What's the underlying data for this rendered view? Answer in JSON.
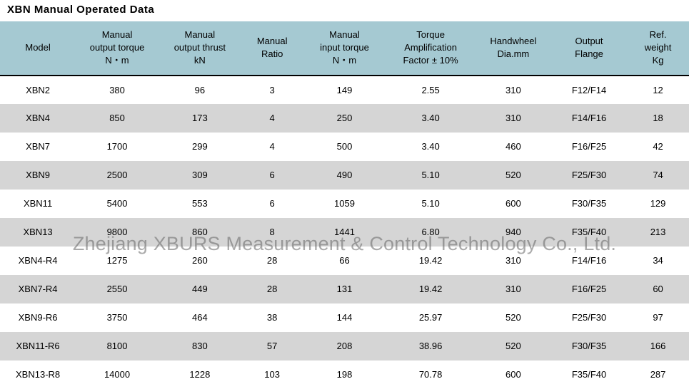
{
  "title": "XBN  Manual Operated Data",
  "watermark": "Zhejiang XBURS Measurement & Control Technology Co., Ltd.",
  "table": {
    "type": "table",
    "background_color": "#ffffff",
    "header_bg": "#a5c9d2",
    "row_alt_bg": "#d5d5d5",
    "header_border_bottom": "#000000",
    "font_family": "Arial",
    "header_fontsize": 13,
    "cell_fontsize": 13,
    "columns": [
      {
        "lines": [
          "Model"
        ],
        "width_pct": 11
      },
      {
        "lines": [
          "Manual",
          "output torque",
          "N・m"
        ],
        "width_pct": 12
      },
      {
        "lines": [
          "Manual",
          "output thrust",
          "kN"
        ],
        "width_pct": 12
      },
      {
        "lines": [
          "Manual",
          "Ratio"
        ],
        "width_pct": 9
      },
      {
        "lines": [
          "Manual",
          "input torque",
          "N・m"
        ],
        "width_pct": 12
      },
      {
        "lines": [
          "Torque",
          "Amplification",
          "Factor ± 10%"
        ],
        "width_pct": 13
      },
      {
        "lines": [
          "Handwheel",
          "Dia.mm"
        ],
        "width_pct": 11
      },
      {
        "lines": [
          "Output",
          "Flange"
        ],
        "width_pct": 11
      },
      {
        "lines": [
          "Ref.",
          "weight",
          "Kg"
        ],
        "width_pct": 9
      }
    ],
    "rows": [
      [
        "XBN2",
        "380",
        "96",
        "3",
        "149",
        "2.55",
        "310",
        "F12/F14",
        "12"
      ],
      [
        "XBN4",
        "850",
        "173",
        "4",
        "250",
        "3.40",
        "310",
        "F14/F16",
        "18"
      ],
      [
        "XBN7",
        "1700",
        "299",
        "4",
        "500",
        "3.40",
        "460",
        "F16/F25",
        "42"
      ],
      [
        "XBN9",
        "2500",
        "309",
        "6",
        "490",
        "5.10",
        "520",
        "F25/F30",
        "74"
      ],
      [
        "XBN11",
        "5400",
        "553",
        "6",
        "1059",
        "5.10",
        "600",
        "F30/F35",
        "129"
      ],
      [
        "XBN13",
        "9800",
        "860",
        "8",
        "1441",
        "6.80",
        "940",
        "F35/F40",
        "213"
      ],
      [
        "XBN4-R4",
        "1275",
        "260",
        "28",
        "66",
        "19.42",
        "310",
        "F14/F16",
        "34"
      ],
      [
        "XBN7-R4",
        "2550",
        "449",
        "28",
        "131",
        "19.42",
        "310",
        "F16/F25",
        "60"
      ],
      [
        "XBN9-R6",
        "3750",
        "464",
        "38",
        "144",
        "25.97",
        "520",
        "F25/F30",
        "97"
      ],
      [
        "XBN11-R6",
        "8100",
        "830",
        "57",
        "208",
        "38.96",
        "520",
        "F30/F35",
        "166"
      ],
      [
        "XBN13-R8",
        "14000",
        "1228",
        "103",
        "198",
        "70.78",
        "600",
        "F35/F40",
        "287"
      ]
    ]
  }
}
